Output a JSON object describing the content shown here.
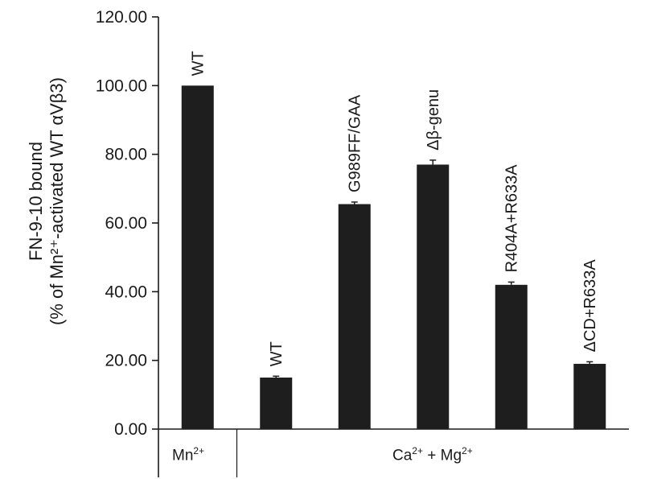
{
  "chart_data": {
    "type": "bar",
    "categories": [
      "WT",
      "WT",
      "G989FF/GAA",
      "Δβ-genu",
      "R404A+R633A",
      "ΔCD+R633A"
    ],
    "values": [
      100.0,
      15.0,
      65.5,
      77.0,
      42.0,
      19.0
    ],
    "errors": [
      0.0,
      0.4,
      0.6,
      1.3,
      0.8,
      0.6
    ],
    "ylim": [
      0,
      120
    ],
    "yticks": [
      "0.00",
      "20.00",
      "40.00",
      "60.00",
      "80.00",
      "100.00",
      "120.00"
    ],
    "ylabel_line1": "FN-9-10 bound",
    "ylabel_line2": "(% of Mn²⁺-activated WT αVβ3)",
    "groups": [
      {
        "label": "Mn",
        "sup": "2+"
      },
      {
        "label_a": "Ca",
        "sup_a": "2+",
        "mid": " + Mg",
        "sup_b": "2+"
      }
    ],
    "bar_color": "#1e1e1e",
    "grid": false,
    "legend": "none"
  }
}
